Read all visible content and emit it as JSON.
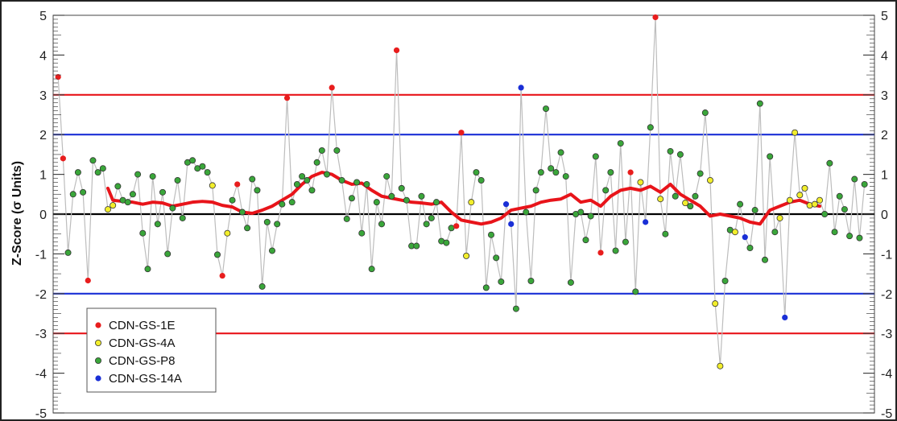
{
  "chart_data": {
    "type": "scatter",
    "ylabel": "Z-Score (σ Units)",
    "ylim": [
      -5,
      5
    ],
    "yticks": [
      "5",
      "4",
      "3",
      "2",
      "1",
      "0",
      "-1",
      "-2",
      "-3",
      "-4",
      "-5"
    ],
    "right_axis_mirrored": true,
    "x_labels_shown": false,
    "reference_lines": [
      {
        "y": 3,
        "color": "#e8141a"
      },
      {
        "y": 2,
        "color": "#1a2fd6"
      },
      {
        "y": 0,
        "color": "#000000"
      },
      {
        "y": -2,
        "color": "#1a2fd6"
      },
      {
        "y": -3,
        "color": "#e8141a"
      }
    ],
    "legend": {
      "position": "bottom-left",
      "entries": [
        {
          "label": "CDN-GS-1E",
          "color": "#e81d1d"
        },
        {
          "label": "CDN-GS-4A",
          "color": "#f2ee2c"
        },
        {
          "label": "CDN-GS-P8",
          "color": "#3aa63a"
        },
        {
          "label": "CDN-GS-14A",
          "color": "#1a2fd6"
        }
      ]
    },
    "series_colors": {
      "1E": "#e81d1d",
      "4A": "#f2ee2c",
      "P8": "#3aa63a",
      "14A": "#1a2fd6"
    },
    "points": [
      {
        "x": 1,
        "y": 3.45,
        "s": "1E"
      },
      {
        "x": 2,
        "y": 1.4,
        "s": "1E"
      },
      {
        "x": 3,
        "y": -0.97,
        "s": "P8"
      },
      {
        "x": 4,
        "y": 0.5,
        "s": "P8"
      },
      {
        "x": 5,
        "y": 1.05,
        "s": "P8"
      },
      {
        "x": 6,
        "y": 0.55,
        "s": "P8"
      },
      {
        "x": 7,
        "y": -1.67,
        "s": "1E"
      },
      {
        "x": 8,
        "y": 1.35,
        "s": "P8"
      },
      {
        "x": 9,
        "y": 1.05,
        "s": "P8"
      },
      {
        "x": 10,
        "y": 1.15,
        "s": "P8"
      },
      {
        "x": 11,
        "y": 0.12,
        "s": "4A"
      },
      {
        "x": 12,
        "y": 0.22,
        "s": "4A"
      },
      {
        "x": 13,
        "y": 0.7,
        "s": "P8"
      },
      {
        "x": 14,
        "y": 0.35,
        "s": "P8"
      },
      {
        "x": 15,
        "y": 0.3,
        "s": "P8"
      },
      {
        "x": 16,
        "y": 0.5,
        "s": "P8"
      },
      {
        "x": 17,
        "y": 1.0,
        "s": "P8"
      },
      {
        "x": 18,
        "y": -0.48,
        "s": "P8"
      },
      {
        "x": 19,
        "y": -1.38,
        "s": "P8"
      },
      {
        "x": 20,
        "y": 0.95,
        "s": "P8"
      },
      {
        "x": 21,
        "y": -0.25,
        "s": "P8"
      },
      {
        "x": 22,
        "y": 0.55,
        "s": "P8"
      },
      {
        "x": 23,
        "y": -1.0,
        "s": "P8"
      },
      {
        "x": 24,
        "y": 0.15,
        "s": "P8"
      },
      {
        "x": 25,
        "y": 0.85,
        "s": "P8"
      },
      {
        "x": 26,
        "y": -0.1,
        "s": "P8"
      },
      {
        "x": 27,
        "y": 1.3,
        "s": "P8"
      },
      {
        "x": 28,
        "y": 1.35,
        "s": "P8"
      },
      {
        "x": 29,
        "y": 1.15,
        "s": "P8"
      },
      {
        "x": 30,
        "y": 1.2,
        "s": "P8"
      },
      {
        "x": 31,
        "y": 1.05,
        "s": "P8"
      },
      {
        "x": 32,
        "y": 0.72,
        "s": "4A"
      },
      {
        "x": 33,
        "y": -1.02,
        "s": "P8"
      },
      {
        "x": 34,
        "y": -1.55,
        "s": "1E"
      },
      {
        "x": 35,
        "y": -0.48,
        "s": "4A"
      },
      {
        "x": 36,
        "y": 0.35,
        "s": "P8"
      },
      {
        "x": 37,
        "y": 0.75,
        "s": "1E"
      },
      {
        "x": 38,
        "y": 0.05,
        "s": "P8"
      },
      {
        "x": 39,
        "y": -0.35,
        "s": "P8"
      },
      {
        "x": 40,
        "y": 0.88,
        "s": "P8"
      },
      {
        "x": 41,
        "y": 0.6,
        "s": "P8"
      },
      {
        "x": 42,
        "y": -1.82,
        "s": "P8"
      },
      {
        "x": 43,
        "y": -0.2,
        "s": "P8"
      },
      {
        "x": 44,
        "y": -0.92,
        "s": "P8"
      },
      {
        "x": 45,
        "y": -0.25,
        "s": "P8"
      },
      {
        "x": 46,
        "y": 0.25,
        "s": "P8"
      },
      {
        "x": 47,
        "y": 2.92,
        "s": "1E"
      },
      {
        "x": 48,
        "y": 0.3,
        "s": "P8"
      },
      {
        "x": 49,
        "y": 0.75,
        "s": "P8"
      },
      {
        "x": 50,
        "y": 0.95,
        "s": "P8"
      },
      {
        "x": 51,
        "y": 0.85,
        "s": "P8"
      },
      {
        "x": 52,
        "y": 0.6,
        "s": "P8"
      },
      {
        "x": 53,
        "y": 1.3,
        "s": "P8"
      },
      {
        "x": 54,
        "y": 1.6,
        "s": "P8"
      },
      {
        "x": 55,
        "y": 1.0,
        "s": "P8"
      },
      {
        "x": 56,
        "y": 3.18,
        "s": "1E"
      },
      {
        "x": 57,
        "y": 1.6,
        "s": "P8"
      },
      {
        "x": 58,
        "y": 0.85,
        "s": "P8"
      },
      {
        "x": 59,
        "y": -0.12,
        "s": "P8"
      },
      {
        "x": 60,
        "y": 0.4,
        "s": "P8"
      },
      {
        "x": 61,
        "y": 0.8,
        "s": "P8"
      },
      {
        "x": 62,
        "y": -0.48,
        "s": "P8"
      },
      {
        "x": 63,
        "y": 0.75,
        "s": "P8"
      },
      {
        "x": 64,
        "y": -1.38,
        "s": "P8"
      },
      {
        "x": 65,
        "y": 0.3,
        "s": "P8"
      },
      {
        "x": 66,
        "y": -0.25,
        "s": "P8"
      },
      {
        "x": 67,
        "y": 0.95,
        "s": "P8"
      },
      {
        "x": 68,
        "y": 0.45,
        "s": "P8"
      },
      {
        "x": 69,
        "y": 4.12,
        "s": "1E"
      },
      {
        "x": 70,
        "y": 0.65,
        "s": "P8"
      },
      {
        "x": 71,
        "y": 0.35,
        "s": "P8"
      },
      {
        "x": 72,
        "y": -0.8,
        "s": "P8"
      },
      {
        "x": 73,
        "y": -0.8,
        "s": "P8"
      },
      {
        "x": 74,
        "y": 0.45,
        "s": "P8"
      },
      {
        "x": 75,
        "y": -0.25,
        "s": "P8"
      },
      {
        "x": 76,
        "y": -0.1,
        "s": "P8"
      },
      {
        "x": 77,
        "y": 0.3,
        "s": "P8"
      },
      {
        "x": 78,
        "y": -0.68,
        "s": "P8"
      },
      {
        "x": 79,
        "y": -0.72,
        "s": "P8"
      },
      {
        "x": 80,
        "y": -0.35,
        "s": "P8"
      },
      {
        "x": 81,
        "y": -0.3,
        "s": "1E"
      },
      {
        "x": 82,
        "y": 2.05,
        "s": "1E"
      },
      {
        "x": 83,
        "y": -1.05,
        "s": "4A"
      },
      {
        "x": 84,
        "y": 0.3,
        "s": "4A"
      },
      {
        "x": 85,
        "y": 1.05,
        "s": "P8"
      },
      {
        "x": 86,
        "y": 0.85,
        "s": "P8"
      },
      {
        "x": 87,
        "y": -1.85,
        "s": "P8"
      },
      {
        "x": 88,
        "y": -0.52,
        "s": "P8"
      },
      {
        "x": 89,
        "y": -1.1,
        "s": "P8"
      },
      {
        "x": 90,
        "y": -1.7,
        "s": "P8"
      },
      {
        "x": 91,
        "y": 0.25,
        "s": "14A"
      },
      {
        "x": 92,
        "y": -0.25,
        "s": "14A"
      },
      {
        "x": 93,
        "y": -2.38,
        "s": "P8"
      },
      {
        "x": 94,
        "y": 3.18,
        "s": "14A"
      },
      {
        "x": 95,
        "y": 0.05,
        "s": "P8"
      },
      {
        "x": 96,
        "y": -1.68,
        "s": "P8"
      },
      {
        "x": 97,
        "y": 0.6,
        "s": "P8"
      },
      {
        "x": 98,
        "y": 1.05,
        "s": "P8"
      },
      {
        "x": 99,
        "y": 2.65,
        "s": "P8"
      },
      {
        "x": 100,
        "y": 1.15,
        "s": "P8"
      },
      {
        "x": 101,
        "y": 1.05,
        "s": "P8"
      },
      {
        "x": 102,
        "y": 1.55,
        "s": "P8"
      },
      {
        "x": 103,
        "y": 0.95,
        "s": "P8"
      },
      {
        "x": 104,
        "y": -1.72,
        "s": "P8"
      },
      {
        "x": 105,
        "y": 0.0,
        "s": "P8"
      },
      {
        "x": 106,
        "y": 0.05,
        "s": "P8"
      },
      {
        "x": 107,
        "y": -0.65,
        "s": "P8"
      },
      {
        "x": 108,
        "y": -0.05,
        "s": "P8"
      },
      {
        "x": 109,
        "y": 1.45,
        "s": "P8"
      },
      {
        "x": 110,
        "y": -0.97,
        "s": "1E"
      },
      {
        "x": 111,
        "y": 0.6,
        "s": "P8"
      },
      {
        "x": 112,
        "y": 1.05,
        "s": "P8"
      },
      {
        "x": 113,
        "y": -0.92,
        "s": "P8"
      },
      {
        "x": 114,
        "y": 1.78,
        "s": "P8"
      },
      {
        "x": 115,
        "y": -0.7,
        "s": "P8"
      },
      {
        "x": 116,
        "y": 1.05,
        "s": "1E"
      },
      {
        "x": 117,
        "y": -1.95,
        "s": "P8"
      },
      {
        "x": 118,
        "y": 0.8,
        "s": "4A"
      },
      {
        "x": 119,
        "y": -0.2,
        "s": "14A"
      },
      {
        "x": 120,
        "y": 2.18,
        "s": "P8"
      },
      {
        "x": 121,
        "y": 4.95,
        "s": "1E"
      },
      {
        "x": 122,
        "y": 0.38,
        "s": "4A"
      },
      {
        "x": 123,
        "y": -0.5,
        "s": "P8"
      },
      {
        "x": 124,
        "y": 1.58,
        "s": "P8"
      },
      {
        "x": 125,
        "y": 0.45,
        "s": "P8"
      },
      {
        "x": 126,
        "y": 1.5,
        "s": "P8"
      },
      {
        "x": 127,
        "y": 0.28,
        "s": "4A"
      },
      {
        "x": 128,
        "y": 0.2,
        "s": "P8"
      },
      {
        "x": 129,
        "y": 0.45,
        "s": "P8"
      },
      {
        "x": 130,
        "y": 1.02,
        "s": "P8"
      },
      {
        "x": 131,
        "y": 2.55,
        "s": "P8"
      },
      {
        "x": 132,
        "y": 0.85,
        "s": "4A"
      },
      {
        "x": 133,
        "y": -2.25,
        "s": "4A"
      },
      {
        "x": 134,
        "y": -3.82,
        "s": "4A"
      },
      {
        "x": 135,
        "y": -1.68,
        "s": "P8"
      },
      {
        "x": 136,
        "y": -0.4,
        "s": "P8"
      },
      {
        "x": 137,
        "y": -0.45,
        "s": "4A"
      },
      {
        "x": 138,
        "y": 0.25,
        "s": "P8"
      },
      {
        "x": 139,
        "y": -0.58,
        "s": "14A"
      },
      {
        "x": 140,
        "y": -0.85,
        "s": "P8"
      },
      {
        "x": 141,
        "y": 0.1,
        "s": "P8"
      },
      {
        "x": 142,
        "y": 2.78,
        "s": "P8"
      },
      {
        "x": 143,
        "y": -1.15,
        "s": "P8"
      },
      {
        "x": 144,
        "y": 1.45,
        "s": "P8"
      },
      {
        "x": 145,
        "y": -0.45,
        "s": "P8"
      },
      {
        "x": 146,
        "y": -0.1,
        "s": "4A"
      },
      {
        "x": 147,
        "y": -2.6,
        "s": "14A"
      },
      {
        "x": 148,
        "y": 0.35,
        "s": "4A"
      },
      {
        "x": 149,
        "y": 2.05,
        "s": "4A"
      },
      {
        "x": 150,
        "y": 0.48,
        "s": "4A"
      },
      {
        "x": 151,
        "y": 0.65,
        "s": "4A"
      },
      {
        "x": 152,
        "y": 0.22,
        "s": "4A"
      },
      {
        "x": 153,
        "y": 0.25,
        "s": "4A"
      },
      {
        "x": 154,
        "y": 0.35,
        "s": "4A"
      },
      {
        "x": 155,
        "y": 0.0,
        "s": "P8"
      },
      {
        "x": 156,
        "y": 1.28,
        "s": "P8"
      },
      {
        "x": 157,
        "y": -0.45,
        "s": "P8"
      },
      {
        "x": 158,
        "y": 0.45,
        "s": "P8"
      },
      {
        "x": 159,
        "y": 0.12,
        "s": "P8"
      },
      {
        "x": 160,
        "y": -0.55,
        "s": "P8"
      },
      {
        "x": 161,
        "y": 0.88,
        "s": "P8"
      },
      {
        "x": 162,
        "y": -0.6,
        "s": "P8"
      },
      {
        "x": 163,
        "y": 0.75,
        "s": "P8"
      }
    ],
    "moving_average": [
      {
        "x": 11,
        "y": 0.65
      },
      {
        "x": 12,
        "y": 0.35
      },
      {
        "x": 14,
        "y": 0.32
      },
      {
        "x": 16,
        "y": 0.3
      },
      {
        "x": 18,
        "y": 0.25
      },
      {
        "x": 20,
        "y": 0.3
      },
      {
        "x": 22,
        "y": 0.28
      },
      {
        "x": 24,
        "y": 0.2
      },
      {
        "x": 26,
        "y": 0.25
      },
      {
        "x": 28,
        "y": 0.3
      },
      {
        "x": 30,
        "y": 0.32
      },
      {
        "x": 32,
        "y": 0.3
      },
      {
        "x": 34,
        "y": 0.22
      },
      {
        "x": 36,
        "y": 0.18
      },
      {
        "x": 38,
        "y": 0.05
      },
      {
        "x": 40,
        "y": 0.02
      },
      {
        "x": 42,
        "y": 0.1
      },
      {
        "x": 44,
        "y": 0.2
      },
      {
        "x": 46,
        "y": 0.35
      },
      {
        "x": 48,
        "y": 0.5
      },
      {
        "x": 50,
        "y": 0.75
      },
      {
        "x": 52,
        "y": 0.95
      },
      {
        "x": 54,
        "y": 1.05
      },
      {
        "x": 56,
        "y": 1.0
      },
      {
        "x": 58,
        "y": 0.85
      },
      {
        "x": 60,
        "y": 0.75
      },
      {
        "x": 62,
        "y": 0.78
      },
      {
        "x": 64,
        "y": 0.6
      },
      {
        "x": 66,
        "y": 0.45
      },
      {
        "x": 68,
        "y": 0.4
      },
      {
        "x": 70,
        "y": 0.35
      },
      {
        "x": 72,
        "y": 0.3
      },
      {
        "x": 74,
        "y": 0.28
      },
      {
        "x": 76,
        "y": 0.25
      },
      {
        "x": 78,
        "y": 0.3
      },
      {
        "x": 80,
        "y": 0.05
      },
      {
        "x": 82,
        "y": -0.15
      },
      {
        "x": 84,
        "y": -0.2
      },
      {
        "x": 86,
        "y": -0.25
      },
      {
        "x": 88,
        "y": -0.2
      },
      {
        "x": 90,
        "y": -0.1
      },
      {
        "x": 92,
        "y": 0.1
      },
      {
        "x": 94,
        "y": 0.15
      },
      {
        "x": 96,
        "y": 0.2
      },
      {
        "x": 98,
        "y": 0.3
      },
      {
        "x": 100,
        "y": 0.35
      },
      {
        "x": 102,
        "y": 0.38
      },
      {
        "x": 104,
        "y": 0.5
      },
      {
        "x": 106,
        "y": 0.3
      },
      {
        "x": 108,
        "y": 0.35
      },
      {
        "x": 110,
        "y": 0.2
      },
      {
        "x": 112,
        "y": 0.45
      },
      {
        "x": 114,
        "y": 0.6
      },
      {
        "x": 116,
        "y": 0.65
      },
      {
        "x": 118,
        "y": 0.6
      },
      {
        "x": 120,
        "y": 0.7
      },
      {
        "x": 122,
        "y": 0.55
      },
      {
        "x": 124,
        "y": 0.75
      },
      {
        "x": 126,
        "y": 0.5
      },
      {
        "x": 128,
        "y": 0.35
      },
      {
        "x": 130,
        "y": 0.2
      },
      {
        "x": 132,
        "y": -0.05
      },
      {
        "x": 134,
        "y": 0.0
      },
      {
        "x": 136,
        "y": -0.05
      },
      {
        "x": 138,
        "y": -0.1
      },
      {
        "x": 140,
        "y": -0.2
      },
      {
        "x": 142,
        "y": -0.25
      },
      {
        "x": 144,
        "y": 0.1
      },
      {
        "x": 146,
        "y": 0.2
      },
      {
        "x": 148,
        "y": 0.3
      },
      {
        "x": 150,
        "y": 0.35
      },
      {
        "x": 152,
        "y": 0.25
      },
      {
        "x": 154,
        "y": 0.2
      }
    ]
  }
}
